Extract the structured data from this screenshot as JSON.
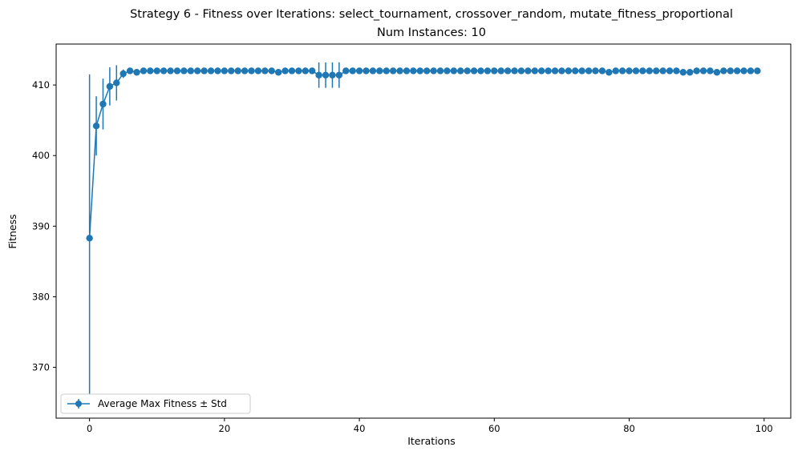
{
  "chart_data": {
    "type": "line",
    "title": "Strategy 6 - Fitness over Iterations: select_tournament, crossover_random, mutate_fitness_proportional",
    "subtitle": "Num Instances: 10",
    "xlabel": "Iterations",
    "ylabel": "Fitness",
    "xlim": [
      -4.95,
      103.95
    ],
    "ylim": [
      362.8,
      415.8
    ],
    "xticks": [
      0,
      20,
      40,
      60,
      80,
      100
    ],
    "yticks": [
      370,
      380,
      390,
      400,
      410
    ],
    "grid": false,
    "legend_position": "lower-left",
    "series": [
      {
        "name": "Average Max Fitness ± Std",
        "color": "#1f77b4",
        "marker": "circle",
        "x": [
          0,
          1,
          2,
          3,
          4,
          5,
          6,
          7,
          8,
          9,
          10,
          11,
          12,
          13,
          14,
          15,
          16,
          17,
          18,
          19,
          20,
          21,
          22,
          23,
          24,
          25,
          26,
          27,
          28,
          29,
          30,
          31,
          32,
          33,
          34,
          35,
          36,
          37,
          38,
          39,
          40,
          41,
          42,
          43,
          44,
          45,
          46,
          47,
          48,
          49,
          50,
          51,
          52,
          53,
          54,
          55,
          56,
          57,
          58,
          59,
          60,
          61,
          62,
          63,
          64,
          65,
          66,
          67,
          68,
          69,
          70,
          71,
          72,
          73,
          74,
          75,
          76,
          77,
          78,
          79,
          80,
          81,
          82,
          83,
          84,
          85,
          86,
          87,
          88,
          89,
          90,
          91,
          92,
          93,
          94,
          95,
          96,
          97,
          98,
          99
        ],
        "y": [
          388.3,
          404.2,
          407.3,
          409.8,
          410.3,
          411.6,
          412.0,
          411.8,
          412.0,
          412.0,
          412.0,
          412.0,
          412.0,
          412.0,
          412.0,
          412.0,
          412.0,
          412.0,
          412.0,
          412.0,
          412.0,
          412.0,
          412.0,
          412.0,
          412.0,
          412.0,
          412.0,
          412.0,
          411.8,
          412.0,
          412.0,
          412.0,
          412.0,
          412.0,
          411.4,
          411.4,
          411.4,
          411.4,
          412.0,
          412.0,
          412.0,
          412.0,
          412.0,
          412.0,
          412.0,
          412.0,
          412.0,
          412.0,
          412.0,
          412.0,
          412.0,
          412.0,
          412.0,
          412.0,
          412.0,
          412.0,
          412.0,
          412.0,
          412.0,
          412.0,
          412.0,
          412.0,
          412.0,
          412.0,
          412.0,
          412.0,
          412.0,
          412.0,
          412.0,
          412.0,
          412.0,
          412.0,
          412.0,
          412.0,
          412.0,
          412.0,
          412.0,
          411.8,
          412.0,
          412.0,
          412.0,
          412.0,
          412.0,
          412.0,
          412.0,
          412.0,
          412.0,
          412.0,
          411.8,
          411.8,
          412.0,
          412.0,
          412.0,
          411.8,
          412.0,
          412.0,
          412.0,
          412.0,
          412.0,
          412.0
        ],
        "std": [
          23.2,
          4.2,
          3.6,
          2.7,
          2.5,
          0.6,
          0,
          0,
          0,
          0,
          0,
          0,
          0,
          0,
          0,
          0,
          0,
          0,
          0,
          0,
          0,
          0,
          0,
          0,
          0,
          0,
          0,
          0,
          0,
          0,
          0,
          0,
          0,
          0,
          1.8,
          1.8,
          1.8,
          1.8,
          0,
          0,
          0,
          0,
          0,
          0,
          0,
          0,
          0,
          0,
          0,
          0,
          0,
          0,
          0,
          0,
          0,
          0,
          0,
          0,
          0,
          0,
          0,
          0,
          0,
          0,
          0,
          0,
          0,
          0,
          0,
          0,
          0,
          0,
          0,
          0,
          0,
          0,
          0,
          0,
          0,
          0,
          0,
          0,
          0,
          0,
          0,
          0,
          0,
          0,
          0,
          0,
          0,
          0,
          0,
          0,
          0,
          0,
          0,
          0,
          0,
          0
        ]
      }
    ]
  }
}
